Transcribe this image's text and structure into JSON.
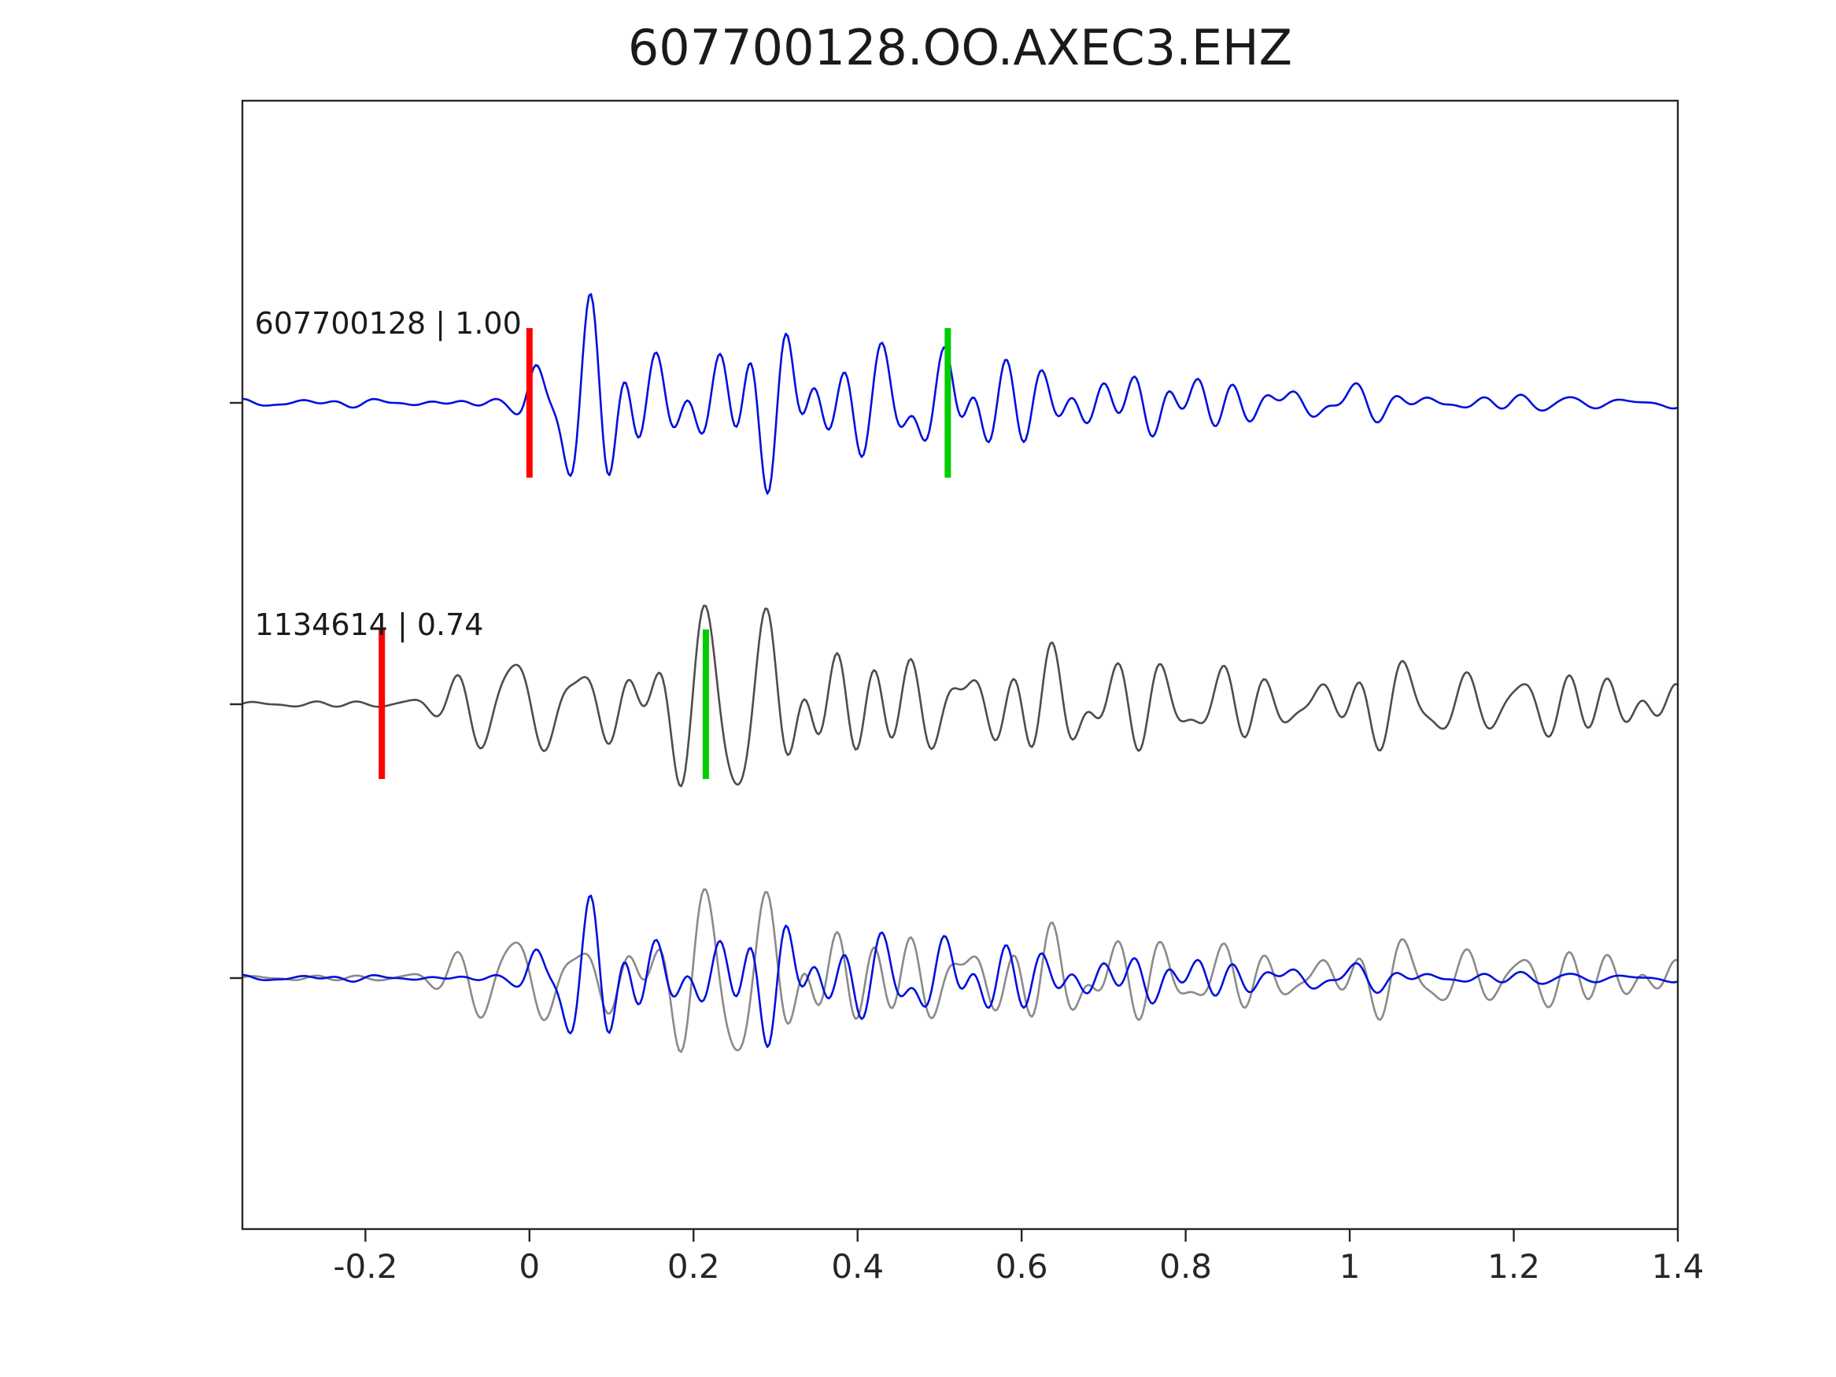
{
  "title": "607700128.OO.AXEC3.EHZ",
  "colors": {
    "background": "#ffffff",
    "axis": "#262626",
    "text": "#1a1a1a",
    "trace_blue": "#0010dd",
    "trace_dark_gray": "#4d4d4d",
    "trace_light_gray": "#8a8a8a",
    "pick_red": "#ff0000",
    "pick_green": "#00cc00"
  },
  "chart_data": {
    "type": "line",
    "title": "607700128.OO.AXEC3.EHZ",
    "xlabel": "",
    "ylabel": "",
    "xlim": [
      -0.35,
      1.4
    ],
    "x_tick_values": [
      -0.2,
      0,
      0.2,
      0.4,
      0.6,
      0.8,
      1,
      1.2,
      1.4
    ],
    "x_tick_labels": [
      "-0.2",
      "0",
      "0.2",
      "0.4",
      "0.6",
      "0.8",
      "1",
      "1.2",
      "1.4"
    ],
    "grid": false,
    "legend": "none",
    "rows": 3,
    "traces": [
      {
        "id": "template-607700128",
        "label": "607700128 | 1.00",
        "event_id": "607700128",
        "correlation": 1.0,
        "row": 0,
        "color": "#0010dd",
        "amp": 165,
        "picks": [
          {
            "name": "pick-red",
            "color": "#ff0000",
            "x": 0.0
          },
          {
            "name": "pick-green",
            "color": "#00cc00",
            "x": 0.51
          }
        ],
        "synth": {
          "seed": 1234,
          "ncomp": 16,
          "fmin": 9,
          "fmax": 26,
          "pre": 0.045,
          "onset": 0.0,
          "bursts": [
            {
              "c": 0.07,
              "w": 0.07,
              "a": 1.0
            },
            {
              "c": 0.3,
              "w": 0.07,
              "a": 0.9
            },
            {
              "c": 0.52,
              "w": 0.07,
              "a": 0.55
            },
            {
              "c": 0.75,
              "w": 0.1,
              "a": 0.35
            },
            {
              "c": 1.1,
              "w": 0.3,
              "a": 0.18
            }
          ]
        }
      },
      {
        "id": "detection-1134614",
        "label": "1134614 | 0.74",
        "event_id": "1134614",
        "correlation": 0.74,
        "row": 1,
        "color": "#4d4d4d",
        "amp": 150,
        "picks": [
          {
            "name": "pick-red",
            "color": "#ff0000",
            "x": -0.18
          },
          {
            "name": "pick-green",
            "color": "#00cc00",
            "x": 0.215
          }
        ],
        "synth": {
          "seed": 99,
          "ncomp": 16,
          "fmin": 9,
          "fmax": 24,
          "pre": 0.05,
          "onset": -0.16,
          "bursts": [
            {
              "c": -0.06,
              "w": 0.05,
              "a": 0.3
            },
            {
              "c": 0.07,
              "w": 0.1,
              "a": 0.85
            },
            {
              "c": 0.33,
              "w": 0.1,
              "a": 0.95
            },
            {
              "c": 0.62,
              "w": 0.1,
              "a": 0.65
            },
            {
              "c": 0.9,
              "w": 0.12,
              "a": 0.5
            },
            {
              "c": 1.2,
              "w": 0.25,
              "a": 0.4
            }
          ]
        }
      },
      {
        "id": "overlay-gray",
        "label": "",
        "event_id": "1134614",
        "row": 2,
        "color": "#8a8a8a",
        "amp": 135,
        "picks": [],
        "synth": {
          "seed": 99,
          "ncomp": 16,
          "fmin": 9,
          "fmax": 24,
          "pre": 0.05,
          "onset": -0.16,
          "bursts": [
            {
              "c": -0.06,
              "w": 0.05,
              "a": 0.3
            },
            {
              "c": 0.07,
              "w": 0.1,
              "a": 0.85
            },
            {
              "c": 0.33,
              "w": 0.1,
              "a": 0.95
            },
            {
              "c": 0.62,
              "w": 0.1,
              "a": 0.65
            },
            {
              "c": 0.9,
              "w": 0.12,
              "a": 0.5
            },
            {
              "c": 1.2,
              "w": 0.25,
              "a": 0.4
            }
          ]
        }
      },
      {
        "id": "overlay-blue",
        "label": "",
        "event_id": "607700128",
        "row": 2,
        "color": "#0010dd",
        "amp": 125,
        "picks": [],
        "synth": {
          "seed": 1234,
          "ncomp": 16,
          "fmin": 9,
          "fmax": 26,
          "pre": 0.045,
          "onset": 0.0,
          "bursts": [
            {
              "c": 0.07,
              "w": 0.07,
              "a": 1.0
            },
            {
              "c": 0.3,
              "w": 0.07,
              "a": 0.9
            },
            {
              "c": 0.52,
              "w": 0.07,
              "a": 0.55
            },
            {
              "c": 0.75,
              "w": 0.1,
              "a": 0.35
            },
            {
              "c": 1.1,
              "w": 0.3,
              "a": 0.18
            }
          ]
        }
      }
    ]
  }
}
